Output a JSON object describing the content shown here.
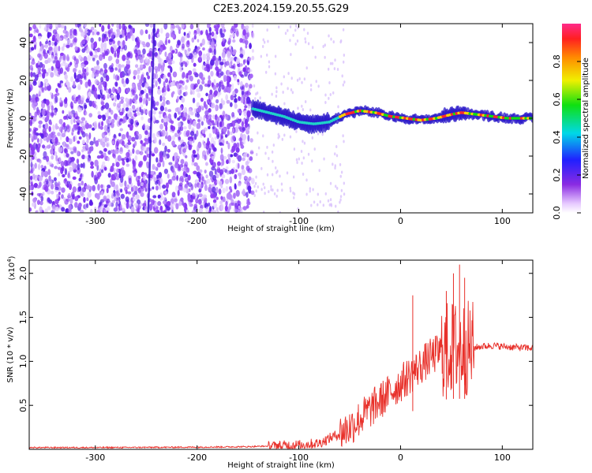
{
  "title": "C2E3.2024.159.20.55.G29",
  "colors": {
    "snr_line": "#e8302a",
    "spectrogram_noise": "#7a2cf0",
    "spectrogram_signal": "#1fd2c8",
    "spectrogram_peak": "#ff2a2a"
  },
  "chart_data": [
    {
      "type": "heatmap",
      "xlabel": "Height of straight line (km)",
      "ylabel": "Frequency (Hz)",
      "xlim": [
        -365,
        130
      ],
      "ylim": [
        -50,
        50
      ],
      "x_ticks": [
        -300,
        -200,
        -100,
        0,
        100
      ],
      "x_tick_labels": [
        "-300",
        "-200",
        "-100",
        "0",
        "100"
      ],
      "y_ticks": [
        -40,
        -20,
        0,
        20,
        40
      ],
      "y_tick_labels": [
        "-40",
        "-20",
        "0",
        "20",
        "40"
      ],
      "colorbar": {
        "label": "Normalized spectral amplitude",
        "range": [
          0,
          1
        ],
        "ticks": [
          0.0,
          0.2,
          0.4,
          0.6,
          0.8
        ],
        "tick_labels": [
          "0.0",
          "0.2",
          "0.4",
          "0.6",
          "0.8"
        ]
      },
      "noise_region_x": [
        -365,
        -145
      ],
      "vertical_streak": {
        "x_top": -242,
        "x_bottom": -248
      },
      "signal_trace": [
        {
          "x": -145,
          "y": 5
        },
        {
          "x": -130,
          "y": 3
        },
        {
          "x": -115,
          "y": 1
        },
        {
          "x": -100,
          "y": -2
        },
        {
          "x": -85,
          "y": -3
        },
        {
          "x": -70,
          "y": -2
        },
        {
          "x": -55,
          "y": 2
        },
        {
          "x": -40,
          "y": 4
        },
        {
          "x": -25,
          "y": 3
        },
        {
          "x": -10,
          "y": 1
        },
        {
          "x": 5,
          "y": 0
        },
        {
          "x": 20,
          "y": -1
        },
        {
          "x": 35,
          "y": 0
        },
        {
          "x": 50,
          "y": 2
        },
        {
          "x": 60,
          "y": 3
        },
        {
          "x": 75,
          "y": 2
        },
        {
          "x": 90,
          "y": 1
        },
        {
          "x": 105,
          "y": 0
        },
        {
          "x": 130,
          "y": 0
        }
      ]
    },
    {
      "type": "line",
      "xlabel": "Height of straight line (km)",
      "ylabel": "SNR (10 * v/v)",
      "y_scale_label": "(x10",
      "y_scale_exponent": "4",
      "y_scale_close": ")",
      "xlim": [
        -365,
        130
      ],
      "ylim": [
        0,
        2.15
      ],
      "x_ticks": [
        -300,
        -200,
        -100,
        0,
        100
      ],
      "x_tick_labels": [
        "-300",
        "-200",
        "-100",
        "0",
        "100"
      ],
      "y_ticks": [
        0.5,
        1.0,
        1.5,
        2.0
      ],
      "y_tick_labels": [
        "0.5",
        "1.0",
        "1.5",
        "2.0"
      ],
      "series": [
        {
          "envelope": [
            {
              "x": -365,
              "y": 0.02
            },
            {
              "x": -300,
              "y": 0.02
            },
            {
              "x": -200,
              "y": 0.025
            },
            {
              "x": -150,
              "y": 0.03
            },
            {
              "x": -120,
              "y": 0.04
            },
            {
              "x": -100,
              "y": 0.05
            },
            {
              "x": -80,
              "y": 0.07
            },
            {
              "x": -60,
              "y": 0.18
            },
            {
              "x": -50,
              "y": 0.25
            },
            {
              "x": -40,
              "y": 0.35
            },
            {
              "x": -30,
              "y": 0.45
            },
            {
              "x": -20,
              "y": 0.55
            },
            {
              "x": -10,
              "y": 0.65
            },
            {
              "x": 0,
              "y": 0.75
            },
            {
              "x": 10,
              "y": 0.85
            },
            {
              "x": 20,
              "y": 0.95
            },
            {
              "x": 30,
              "y": 1.05
            },
            {
              "x": 40,
              "y": 1.12
            },
            {
              "x": 50,
              "y": 1.15
            },
            {
              "x": 60,
              "y": 1.15
            },
            {
              "x": 70,
              "y": 1.15
            },
            {
              "x": 80,
              "y": 1.17
            },
            {
              "x": 90,
              "y": 1.18
            },
            {
              "x": 100,
              "y": 1.17
            },
            {
              "x": 110,
              "y": 1.16
            },
            {
              "x": 130,
              "y": 1.15
            }
          ],
          "peaks": [
            {
              "x": 12,
              "y": 1.75
            },
            {
              "x": 45,
              "y": 1.8
            },
            {
              "x": 52,
              "y": 2.0
            },
            {
              "x": 58,
              "y": 2.1
            },
            {
              "x": 63,
              "y": 1.95
            }
          ]
        }
      ]
    }
  ]
}
